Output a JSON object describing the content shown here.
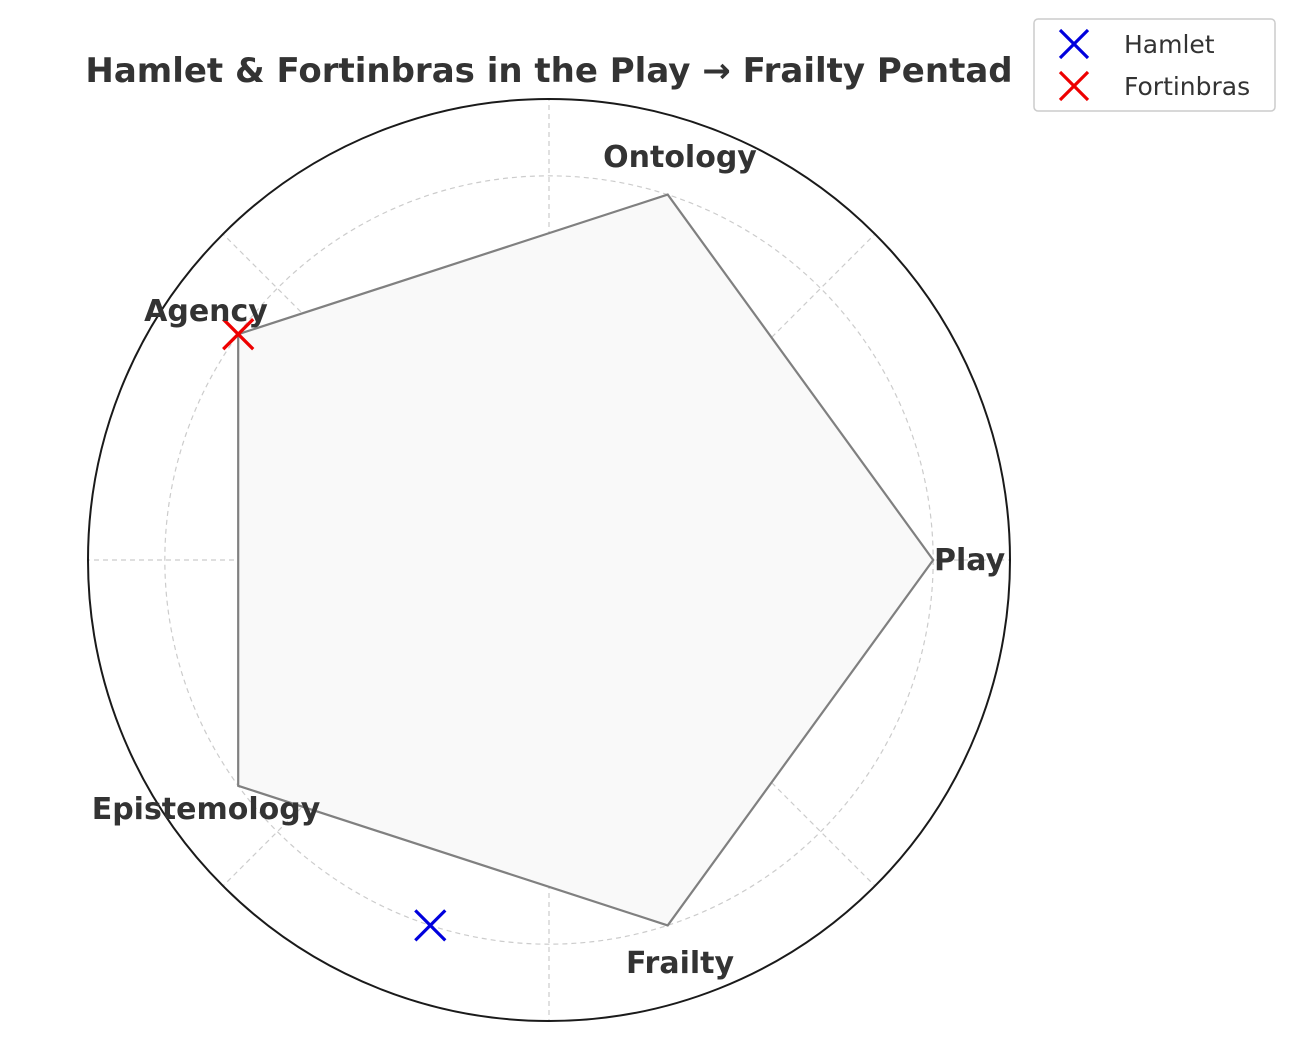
{
  "chart_data": {
    "type": "radar",
    "title": "Hamlet & Fortinbras in the Play → Frailty Pentad",
    "axes": [
      "Play",
      "Ontology",
      "Agency",
      "Epistemology",
      "Frailty"
    ],
    "rmax": 6,
    "grid_rings": [
      1,
      2,
      3,
      4,
      5
    ],
    "grid": true,
    "polygon": {
      "values": [
        5,
        5,
        5,
        5,
        5
      ],
      "fill": "#f9f9f9",
      "stroke": "#808080"
    },
    "markers": [
      {
        "name": "Hamlet",
        "axis_angle_deg": 252,
        "r": 5,
        "color": "#0000dd"
      },
      {
        "name": "Fortinbras",
        "axis_angle_deg": 144,
        "r": 5,
        "color": "#ee0000"
      }
    ],
    "legend": {
      "placement": "top-right",
      "entries": [
        "Hamlet",
        "Fortinbras"
      ]
    }
  }
}
